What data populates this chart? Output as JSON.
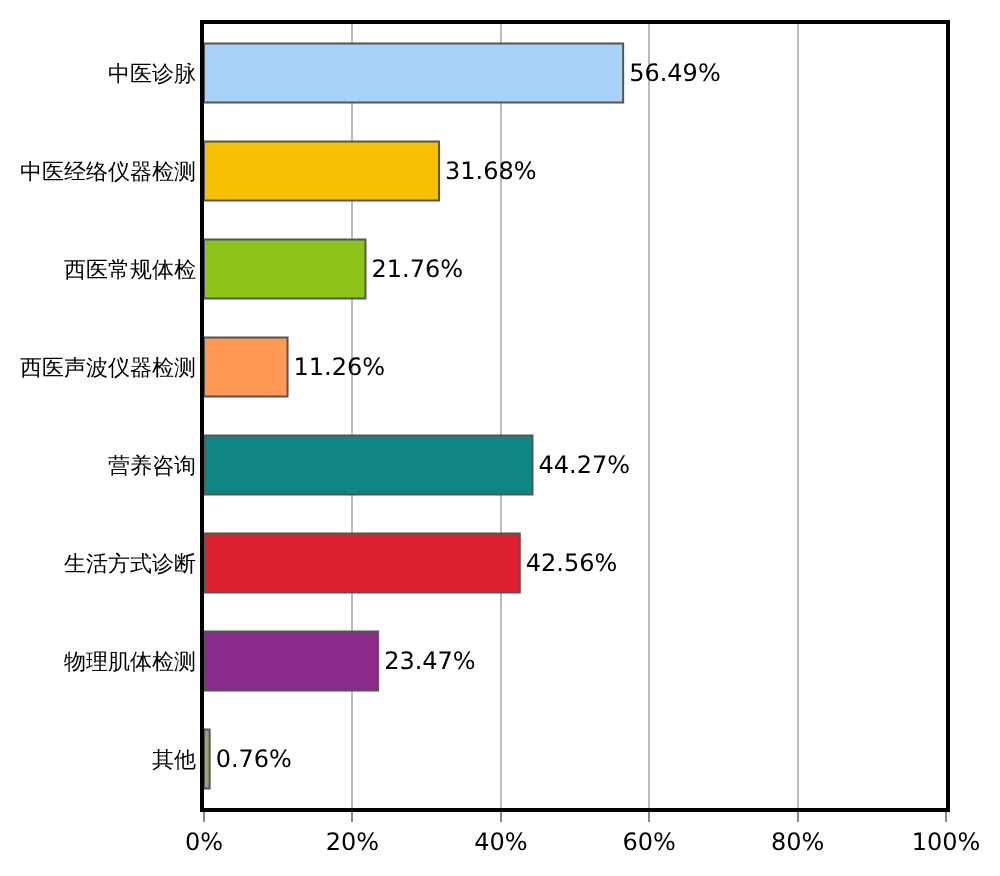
{
  "chart_data": {
    "type": "bar",
    "orientation": "horizontal",
    "categories": [
      "中医诊脉",
      "中医经络仪器检测",
      "西医常规体检",
      "西医声波仪器检测",
      "营养咨询",
      "生活方式诊断",
      "物理肌体检测",
      "其他"
    ],
    "values": [
      56.49,
      31.68,
      21.76,
      11.26,
      44.27,
      42.56,
      23.47,
      0.76
    ],
    "value_labels": [
      "56.49%",
      "31.68%",
      "21.76%",
      "11.26%",
      "44.27%",
      "42.56%",
      "23.47%",
      "0.76%"
    ],
    "colors": [
      "#a9d1f7",
      "#f5c000",
      "#8cc41c",
      "#ff9955",
      "#108585",
      "#dd2030",
      "#8a2a8a",
      "#a0a070"
    ],
    "xlim": [
      0,
      100
    ],
    "xticks": [
      {
        "value": 0,
        "label": "0%"
      },
      {
        "value": 20,
        "label": "20%"
      },
      {
        "value": 40,
        "label": "40%"
      },
      {
        "value": 60,
        "label": "60%"
      },
      {
        "value": 80,
        "label": "80%"
      },
      {
        "value": 100,
        "label": "100%"
      }
    ],
    "grid": "x",
    "legend": false
  }
}
